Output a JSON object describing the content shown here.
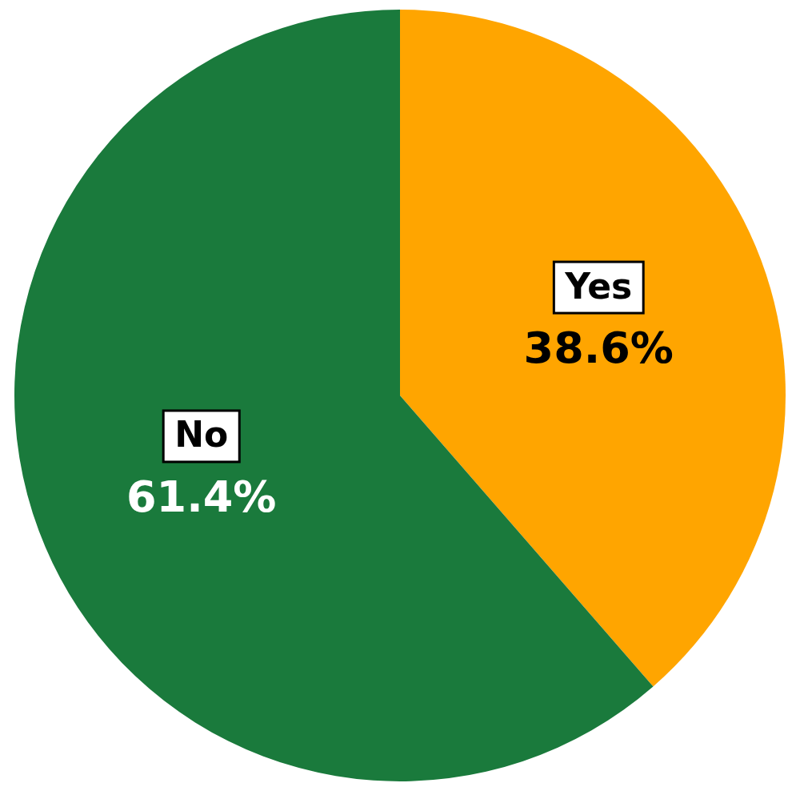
{
  "chart_data": {
    "type": "pie",
    "categories": [
      "Yes",
      "No"
    ],
    "values": [
      38.6,
      61.4
    ],
    "value_labels": [
      "38.6%",
      "61.4%"
    ],
    "colors": [
      "#FFA500",
      "#1A7A3C"
    ],
    "data_labels": true
  }
}
